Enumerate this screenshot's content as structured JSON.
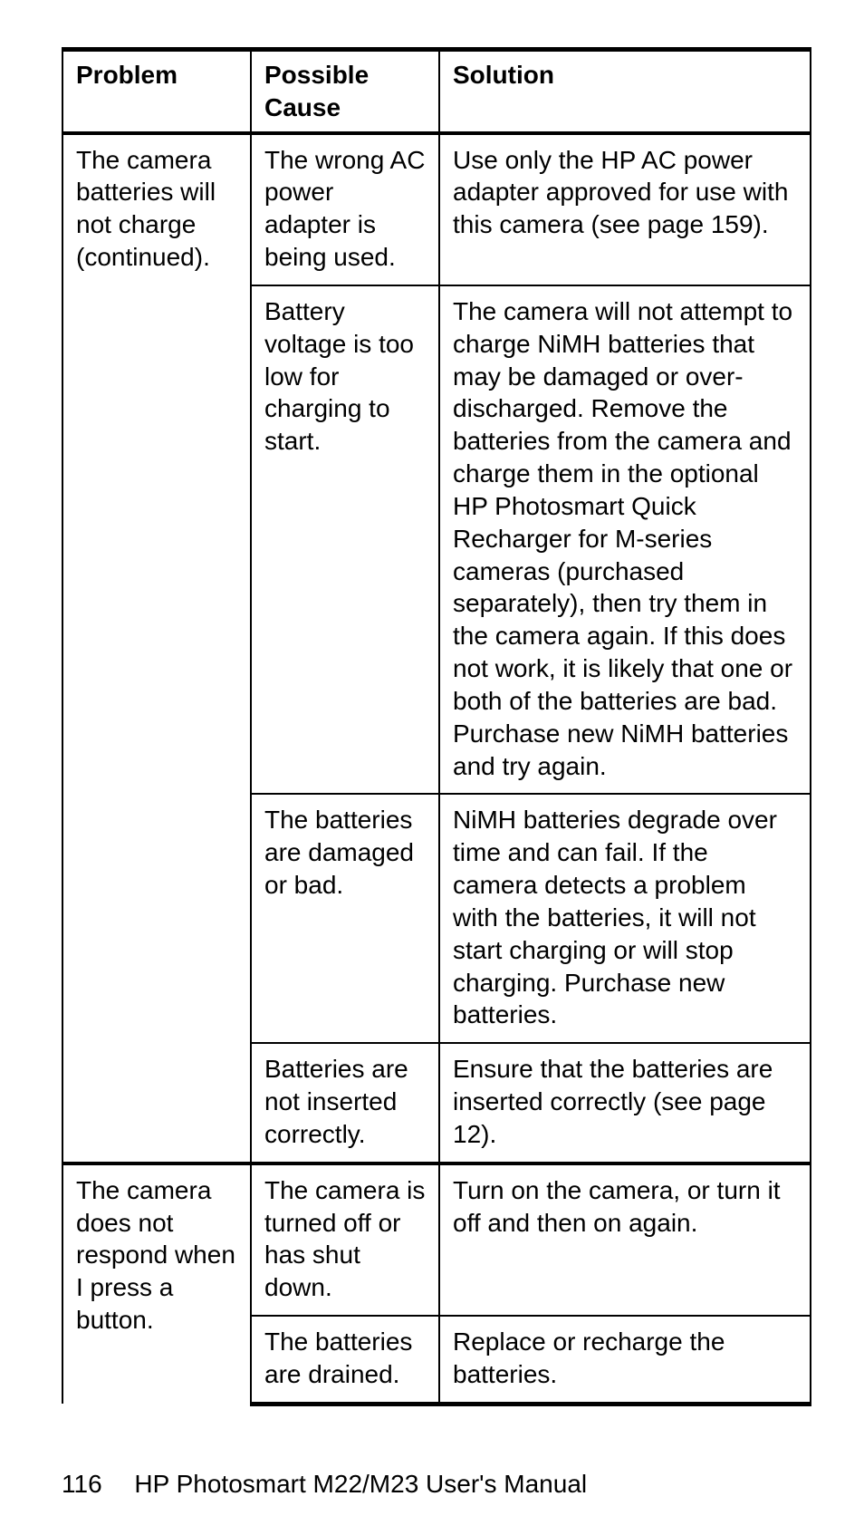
{
  "table": {
    "headers": {
      "problem": "Problem",
      "cause": "Possible Cause",
      "solution": "Solution"
    },
    "group1": {
      "problem_bold": "The camera batteries will not charge",
      "problem_plain": " (continued).",
      "rows": [
        {
          "cause": "The wrong AC power adapter is being used.",
          "solution": "Use only the HP AC power adapter approved for use with this camera (see page 159)."
        },
        {
          "cause": "Battery voltage is too low for charging to start.",
          "solution": "The camera will not attempt to charge NiMH batteries that may be damaged or over-discharged. Remove the batteries from the camera and charge them in the optional HP Photosmart Quick Recharger for M-series cameras (purchased separately), then try them in the camera again. If this does not work, it is likely that one or both of the batteries are bad. Purchase new NiMH batteries and try again."
        },
        {
          "cause": "The batteries are damaged or bad.",
          "solution": "NiMH batteries degrade over time and can fail. If the camera detects a problem with the batteries, it will not start charging or will stop charging. Purchase new batteries."
        },
        {
          "cause": "Batteries are not inserted correctly.",
          "solution": "Ensure that the batteries are inserted correctly (see page 12)."
        }
      ]
    },
    "group2": {
      "problem_bold": "The camera does not respond when I press a button.",
      "rows": [
        {
          "cause": "The camera is turned off or has shut down.",
          "solution": "Turn on the camera, or turn it off and then on again."
        },
        {
          "cause": "The batteries are drained.",
          "solution": "Replace or recharge the batteries."
        }
      ]
    }
  },
  "footer": {
    "page_number": "116",
    "manual_title": "HP Photosmart M22/M23 User's Manual"
  }
}
